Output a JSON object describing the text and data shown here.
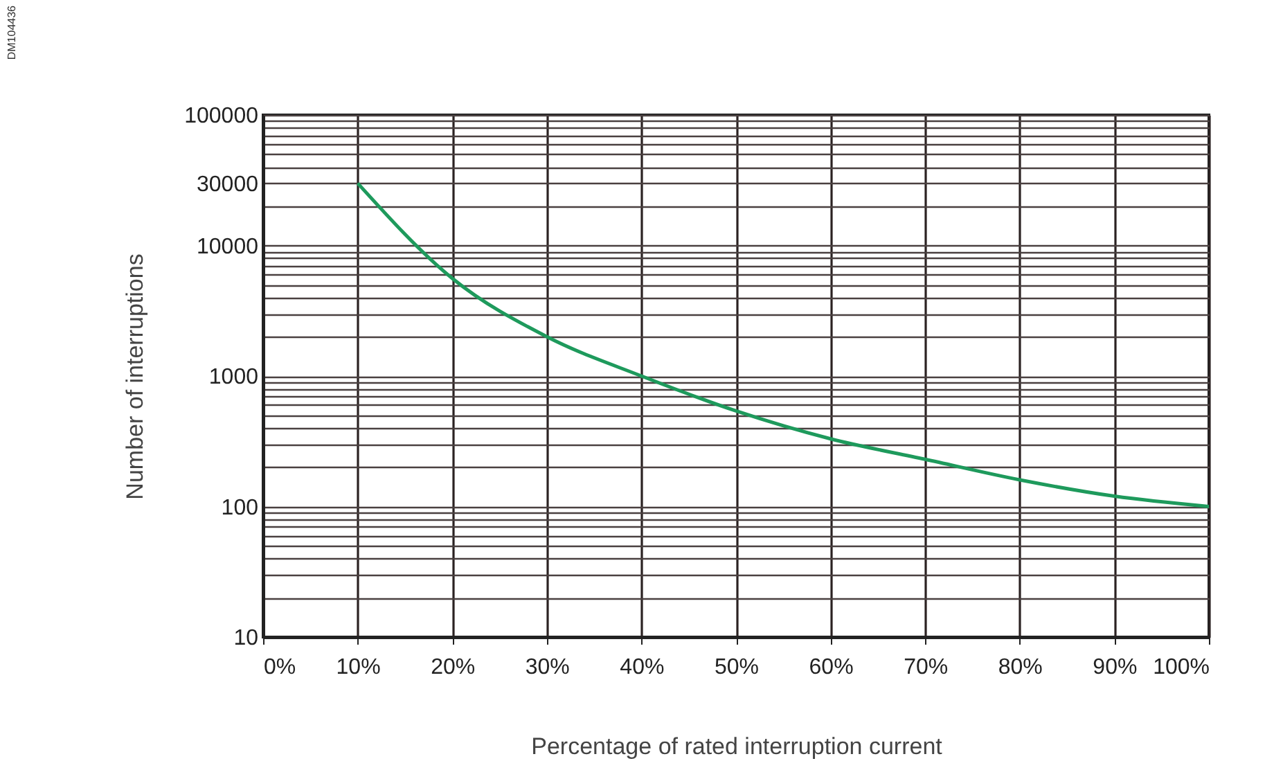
{
  "chart_data": {
    "type": "line",
    "xlabel": "Percentage of rated interruption current",
    "ylabel": "Number of interruptions",
    "x": [
      10,
      20,
      30,
      40,
      50,
      60,
      70,
      80,
      90,
      100
    ],
    "series": [
      {
        "color": "#1e9a5c",
        "values": [
          30000,
          5600,
          2000,
          1000,
          540,
          330,
          230,
          160,
          120,
          100
        ]
      }
    ],
    "xlim": [
      0,
      100
    ],
    "xticks": [
      {
        "value": 0,
        "label": "0%"
      },
      {
        "value": 10,
        "label": "10%"
      },
      {
        "value": 20,
        "label": "20%"
      },
      {
        "value": 30,
        "label": "30%"
      },
      {
        "value": 40,
        "label": "40%"
      },
      {
        "value": 50,
        "label": "50%"
      },
      {
        "value": 60,
        "label": "60%"
      },
      {
        "value": 70,
        "label": "70%"
      },
      {
        "value": 80,
        "label": "80%"
      },
      {
        "value": 90,
        "label": "90%"
      },
      {
        "value": 100,
        "label": "100%"
      }
    ],
    "ylim": [
      10,
      100000
    ],
    "yticks": [
      10,
      {
        "value": 20,
        "label": null
      },
      {
        "value": 30,
        "label": null
      },
      {
        "value": 40,
        "label": null
      },
      {
        "value": 50,
        "label": null
      },
      {
        "value": 60,
        "label": null
      },
      {
        "value": 70,
        "label": null
      },
      {
        "value": 80,
        "label": null
      },
      {
        "value": 90,
        "label": null
      },
      100,
      {
        "value": 200,
        "label": null
      },
      {
        "value": 300,
        "label": null
      },
      {
        "value": 400,
        "label": null
      },
      {
        "value": 500,
        "label": null
      },
      {
        "value": 600,
        "label": null
      },
      {
        "value": 700,
        "label": null
      },
      {
        "value": 800,
        "label": null
      },
      {
        "value": 900,
        "label": null
      },
      1000,
      {
        "value": 2000,
        "label": null
      },
      {
        "value": 3000,
        "label": null
      },
      {
        "value": 4000,
        "label": null
      },
      {
        "value": 5000,
        "label": null
      },
      {
        "value": 6000,
        "label": null
      },
      {
        "value": 7000,
        "label": null
      },
      {
        "value": 8000,
        "label": null
      },
      {
        "value": 9000,
        "label": null
      },
      10000,
      {
        "value": 20000,
        "label": null
      },
      30000,
      {
        "value": 40000,
        "label": null
      },
      {
        "value": 50000,
        "label": null
      },
      {
        "value": 60000,
        "label": null
      },
      {
        "value": 70000,
        "label": null
      },
      {
        "value": 80000,
        "label": null
      },
      {
        "value": 90000,
        "label": null
      },
      100000
    ],
    "log": true,
    "grid": true,
    "annotations": [
      "DM104436"
    ]
  }
}
